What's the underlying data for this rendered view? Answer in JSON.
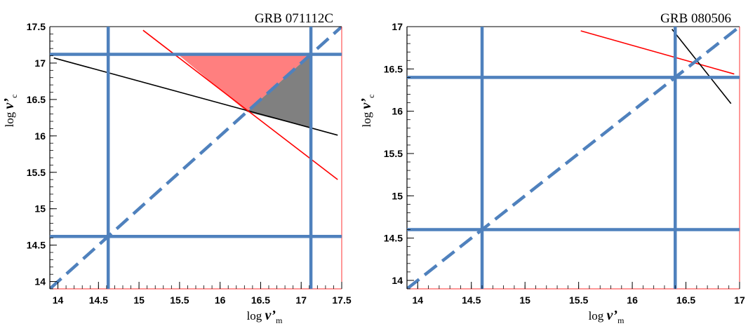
{
  "chart_data": [
    {
      "type": "line",
      "title": "GRB 071112C",
      "xlabel": {
        "prefix": "log",
        "symbol": "ν",
        "prime": "’",
        "subscript": "m"
      },
      "ylabel": {
        "prefix": "log",
        "symbol": "ν",
        "prime": "’",
        "subscript": "c"
      },
      "xlim": [
        13.9,
        17.5
      ],
      "ylim": [
        13.9,
        17.5
      ],
      "xticks": [
        "14",
        "14.5",
        "15",
        "15.5",
        "16",
        "16.5",
        "17",
        "17.5"
      ],
      "yticks": [
        "14",
        "14.5",
        "15",
        "15.5",
        "16",
        "16.5",
        "17",
        "17.5"
      ],
      "grid": false,
      "series": [
        {
          "color": "#000000",
          "style": "solid",
          "points": [
            [
              13.95,
              17.07
            ],
            [
              17.45,
              16.01
            ]
          ]
        },
        {
          "color": "#ff0000",
          "style": "solid",
          "points": [
            [
              15.05,
              17.45
            ],
            [
              17.45,
              15.4
            ]
          ]
        },
        {
          "color": "#4f81bd",
          "style": "dashed",
          "points": [
            [
              13.9,
              13.9
            ],
            [
              17.5,
              17.5
            ]
          ]
        }
      ],
      "hlines": [
        {
          "y": 14.62,
          "color": "#4f81bd"
        },
        {
          "y": 17.12,
          "color": "#4f81bd"
        }
      ],
      "vlines": [
        {
          "x": 14.62,
          "color": "#4f81bd"
        },
        {
          "x": 17.12,
          "color": "#4f81bd"
        }
      ],
      "filled_regions": [
        {
          "color": "#ff7f7f",
          "points": [
            [
              15.48,
              17.12
            ],
            [
              17.12,
              17.12
            ],
            [
              17.12,
              17.12
            ],
            [
              16.33,
              16.33
            ]
          ]
        },
        {
          "color": "#808080",
          "points": [
            [
              16.33,
              16.33
            ],
            [
              17.12,
              17.12
            ],
            [
              17.12,
              16.11
            ]
          ]
        }
      ]
    },
    {
      "type": "line",
      "title": "GRB 080506",
      "xlabel": {
        "prefix": "log",
        "symbol": "ν",
        "prime": "’",
        "subscript": "m"
      },
      "ylabel": {
        "prefix": "log",
        "symbol": "ν",
        "prime": "’",
        "subscript": "c"
      },
      "xlim": [
        13.9,
        17.0
      ],
      "ylim": [
        13.9,
        17.0
      ],
      "xticks": [
        "14",
        "14.5",
        "15",
        "15.5",
        "16",
        "16.5",
        "17"
      ],
      "yticks": [
        "14",
        "14.5",
        "15",
        "15.5",
        "16",
        "16.5",
        "17"
      ],
      "grid": false,
      "series": [
        {
          "color": "#ff0000",
          "style": "solid",
          "points": [
            [
              15.52,
              16.95
            ],
            [
              16.95,
              16.44
            ]
          ]
        },
        {
          "color": "#000000",
          "style": "solid",
          "points": [
            [
              16.37,
              16.97
            ],
            [
              16.92,
              16.09
            ]
          ]
        },
        {
          "color": "#4f81bd",
          "style": "dashed",
          "points": [
            [
              13.9,
              13.9
            ],
            [
              17.0,
              17.0
            ]
          ]
        }
      ],
      "hlines": [
        {
          "y": 14.6,
          "color": "#4f81bd"
        },
        {
          "y": 16.4,
          "color": "#4f81bd"
        }
      ],
      "vlines": [
        {
          "x": 14.6,
          "color": "#4f81bd"
        },
        {
          "x": 16.4,
          "color": "#4f81bd"
        }
      ],
      "filled_regions": []
    }
  ]
}
